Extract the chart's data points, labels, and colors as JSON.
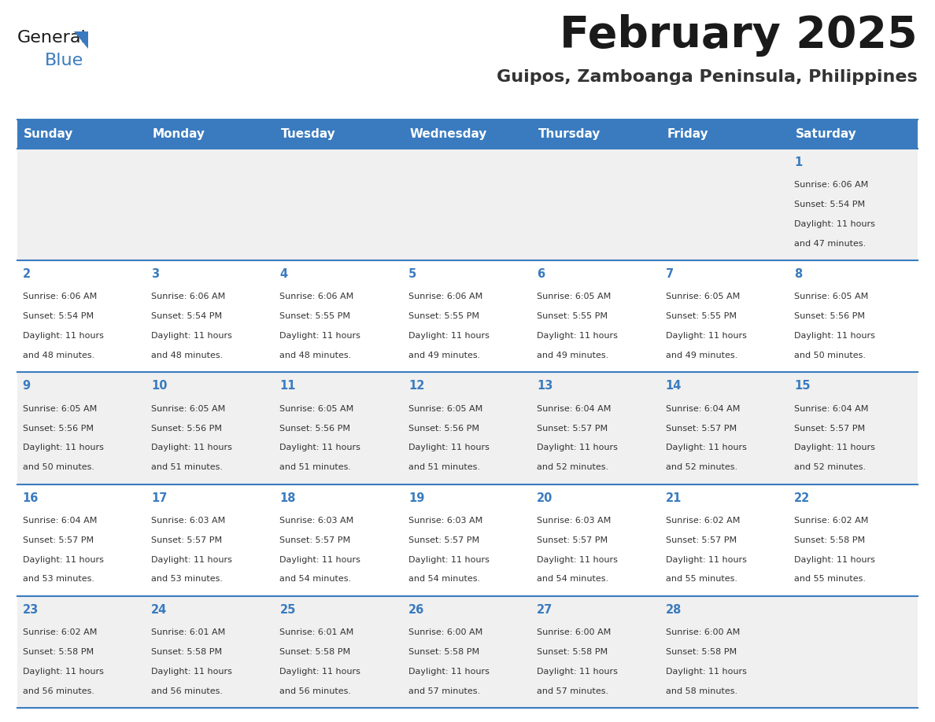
{
  "title": "February 2025",
  "subtitle": "Guipos, Zamboanga Peninsula, Philippines",
  "header_bg": "#3a7bbf",
  "header_text_color": "#ffffff",
  "day_names": [
    "Sunday",
    "Monday",
    "Tuesday",
    "Wednesday",
    "Thursday",
    "Friday",
    "Saturday"
  ],
  "row_bg_odd": "#f0f0f0",
  "row_bg_even": "#ffffff",
  "cell_border_color": "#3a7bbf",
  "title_color": "#1a1a1a",
  "subtitle_color": "#333333",
  "day_number_color": "#3a7bbf",
  "text_color": "#333333",
  "logo_general_color": "#1a1a1a",
  "logo_blue_color": "#3a7bbf",
  "logo_triangle_color": "#3a7bbf",
  "days": [
    {
      "day": 1,
      "col": 6,
      "row": 0,
      "sunrise": "6:06 AM",
      "sunset": "5:54 PM",
      "daylight_hours": 11,
      "daylight_minutes": 47
    },
    {
      "day": 2,
      "col": 0,
      "row": 1,
      "sunrise": "6:06 AM",
      "sunset": "5:54 PM",
      "daylight_hours": 11,
      "daylight_minutes": 48
    },
    {
      "day": 3,
      "col": 1,
      "row": 1,
      "sunrise": "6:06 AM",
      "sunset": "5:54 PM",
      "daylight_hours": 11,
      "daylight_minutes": 48
    },
    {
      "day": 4,
      "col": 2,
      "row": 1,
      "sunrise": "6:06 AM",
      "sunset": "5:55 PM",
      "daylight_hours": 11,
      "daylight_minutes": 48
    },
    {
      "day": 5,
      "col": 3,
      "row": 1,
      "sunrise": "6:06 AM",
      "sunset": "5:55 PM",
      "daylight_hours": 11,
      "daylight_minutes": 49
    },
    {
      "day": 6,
      "col": 4,
      "row": 1,
      "sunrise": "6:05 AM",
      "sunset": "5:55 PM",
      "daylight_hours": 11,
      "daylight_minutes": 49
    },
    {
      "day": 7,
      "col": 5,
      "row": 1,
      "sunrise": "6:05 AM",
      "sunset": "5:55 PM",
      "daylight_hours": 11,
      "daylight_minutes": 49
    },
    {
      "day": 8,
      "col": 6,
      "row": 1,
      "sunrise": "6:05 AM",
      "sunset": "5:56 PM",
      "daylight_hours": 11,
      "daylight_minutes": 50
    },
    {
      "day": 9,
      "col": 0,
      "row": 2,
      "sunrise": "6:05 AM",
      "sunset": "5:56 PM",
      "daylight_hours": 11,
      "daylight_minutes": 50
    },
    {
      "day": 10,
      "col": 1,
      "row": 2,
      "sunrise": "6:05 AM",
      "sunset": "5:56 PM",
      "daylight_hours": 11,
      "daylight_minutes": 51
    },
    {
      "day": 11,
      "col": 2,
      "row": 2,
      "sunrise": "6:05 AM",
      "sunset": "5:56 PM",
      "daylight_hours": 11,
      "daylight_minutes": 51
    },
    {
      "day": 12,
      "col": 3,
      "row": 2,
      "sunrise": "6:05 AM",
      "sunset": "5:56 PM",
      "daylight_hours": 11,
      "daylight_minutes": 51
    },
    {
      "day": 13,
      "col": 4,
      "row": 2,
      "sunrise": "6:04 AM",
      "sunset": "5:57 PM",
      "daylight_hours": 11,
      "daylight_minutes": 52
    },
    {
      "day": 14,
      "col": 5,
      "row": 2,
      "sunrise": "6:04 AM",
      "sunset": "5:57 PM",
      "daylight_hours": 11,
      "daylight_minutes": 52
    },
    {
      "day": 15,
      "col": 6,
      "row": 2,
      "sunrise": "6:04 AM",
      "sunset": "5:57 PM",
      "daylight_hours": 11,
      "daylight_minutes": 52
    },
    {
      "day": 16,
      "col": 0,
      "row": 3,
      "sunrise": "6:04 AM",
      "sunset": "5:57 PM",
      "daylight_hours": 11,
      "daylight_minutes": 53
    },
    {
      "day": 17,
      "col": 1,
      "row": 3,
      "sunrise": "6:03 AM",
      "sunset": "5:57 PM",
      "daylight_hours": 11,
      "daylight_minutes": 53
    },
    {
      "day": 18,
      "col": 2,
      "row": 3,
      "sunrise": "6:03 AM",
      "sunset": "5:57 PM",
      "daylight_hours": 11,
      "daylight_minutes": 54
    },
    {
      "day": 19,
      "col": 3,
      "row": 3,
      "sunrise": "6:03 AM",
      "sunset": "5:57 PM",
      "daylight_hours": 11,
      "daylight_minutes": 54
    },
    {
      "day": 20,
      "col": 4,
      "row": 3,
      "sunrise": "6:03 AM",
      "sunset": "5:57 PM",
      "daylight_hours": 11,
      "daylight_minutes": 54
    },
    {
      "day": 21,
      "col": 5,
      "row": 3,
      "sunrise": "6:02 AM",
      "sunset": "5:57 PM",
      "daylight_hours": 11,
      "daylight_minutes": 55
    },
    {
      "day": 22,
      "col": 6,
      "row": 3,
      "sunrise": "6:02 AM",
      "sunset": "5:58 PM",
      "daylight_hours": 11,
      "daylight_minutes": 55
    },
    {
      "day": 23,
      "col": 0,
      "row": 4,
      "sunrise": "6:02 AM",
      "sunset": "5:58 PM",
      "daylight_hours": 11,
      "daylight_minutes": 56
    },
    {
      "day": 24,
      "col": 1,
      "row": 4,
      "sunrise": "6:01 AM",
      "sunset": "5:58 PM",
      "daylight_hours": 11,
      "daylight_minutes": 56
    },
    {
      "day": 25,
      "col": 2,
      "row": 4,
      "sunrise": "6:01 AM",
      "sunset": "5:58 PM",
      "daylight_hours": 11,
      "daylight_minutes": 56
    },
    {
      "day": 26,
      "col": 3,
      "row": 4,
      "sunrise": "6:00 AM",
      "sunset": "5:58 PM",
      "daylight_hours": 11,
      "daylight_minutes": 57
    },
    {
      "day": 27,
      "col": 4,
      "row": 4,
      "sunrise": "6:00 AM",
      "sunset": "5:58 PM",
      "daylight_hours": 11,
      "daylight_minutes": 57
    },
    {
      "day": 28,
      "col": 5,
      "row": 4,
      "sunrise": "6:00 AM",
      "sunset": "5:58 PM",
      "daylight_hours": 11,
      "daylight_minutes": 58
    }
  ]
}
